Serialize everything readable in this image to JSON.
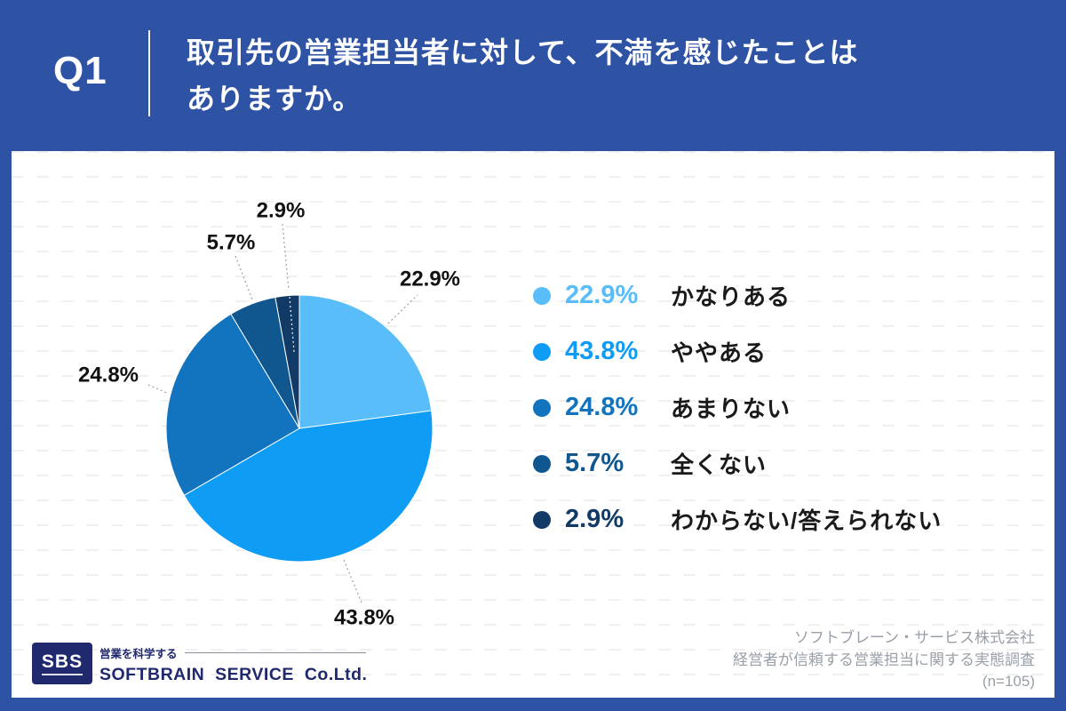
{
  "header": {
    "question_number": "Q1",
    "question_line1": "取引先の営業担当者に対して、不満を感じたことは",
    "question_line2": "ありますか。"
  },
  "chart_data": {
    "type": "pie",
    "title": "取引先の営業担当者に対して、不満を感じたことはありますか。",
    "categories": [
      "かなりある",
      "ややある",
      "あまりない",
      "全くない",
      "わからない/答えられない"
    ],
    "values": [
      22.9,
      43.8,
      24.8,
      5.7,
      2.9
    ],
    "colors": [
      "#58BDF8",
      "#0F9CF5",
      "#1273BE",
      "#10568F",
      "#123A66"
    ],
    "unit": "%",
    "start_angle_deg": 0,
    "direction": "clockwise",
    "legend_position": "right",
    "sample_size_label": "(n=105)"
  },
  "footer": {
    "logo_badge": "SBS",
    "logo_tagline": "営業を科学する",
    "logo_company": "SOFTBRAIN SERVICE Co.Ltd.",
    "source_lines": [
      "ソフトブレーン・サービス株式会社",
      "経営者が信頼する営業担当に関する実態調査",
      "(n=105)"
    ]
  },
  "theme": {
    "banner_blue": "#2E52A4",
    "card_bg": "#FFFFFF",
    "label_black": "#111111",
    "leader_gray": "#A6A6A6",
    "source_gray": "#9AA0A8",
    "logo_navy": "#20286E"
  }
}
